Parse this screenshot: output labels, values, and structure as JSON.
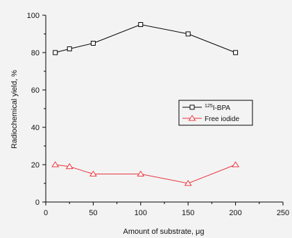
{
  "chart_data": {
    "type": "line",
    "xlabel": "Amount of substrate,   μg",
    "ylabel": "Radiochemical yield, %",
    "xlim": [
      0,
      250
    ],
    "ylim": [
      0,
      100
    ],
    "x_ticks": [
      0,
      50,
      100,
      150,
      200,
      250
    ],
    "y_ticks": [
      0,
      20,
      40,
      60,
      80,
      100
    ],
    "grid": false,
    "legend_position": "right-middle",
    "series": [
      {
        "name_sup": "125",
        "name": "I-BPA",
        "color": "#000000",
        "marker": "square",
        "points": [
          {
            "x": 10,
            "y": 80
          },
          {
            "x": 25,
            "y": 82
          },
          {
            "x": 50,
            "y": 85
          },
          {
            "x": 100,
            "y": 95
          },
          {
            "x": 150,
            "y": 90
          },
          {
            "x": 200,
            "y": 80
          }
        ]
      },
      {
        "name": "Free iodide",
        "color": "#e8323c",
        "marker": "triangle",
        "points": [
          {
            "x": 10,
            "y": 20
          },
          {
            "x": 25,
            "y": 19
          },
          {
            "x": 50,
            "y": 15
          },
          {
            "x": 100,
            "y": 15
          },
          {
            "x": 150,
            "y": 10
          },
          {
            "x": 200,
            "y": 20
          }
        ]
      }
    ]
  }
}
